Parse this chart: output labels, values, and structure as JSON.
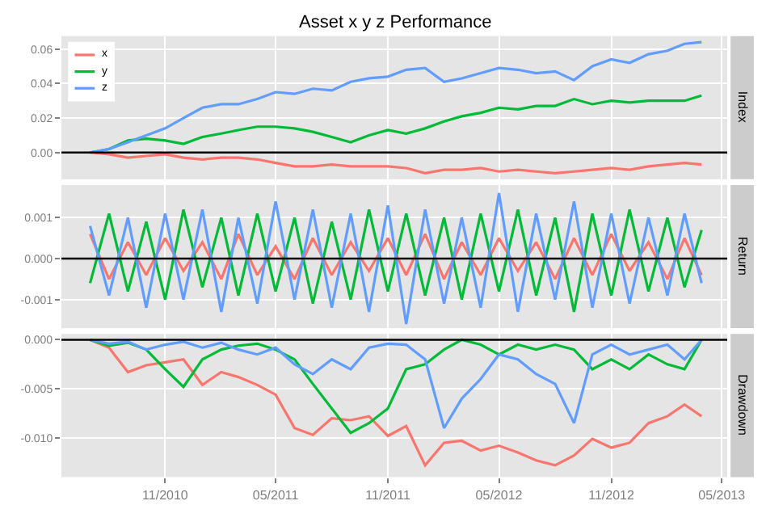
{
  "chart_data": [
    {
      "type": "line",
      "title": "Asset x y z Performance",
      "ylabel": "Index",
      "legend": "top left",
      "grid": true,
      "tick_labels": "y",
      "x": [
        "2010-07-01",
        "2010-08-01",
        "2010-09-01",
        "2010-10-01",
        "2010-11-01",
        "2010-12-01",
        "2011-01-01",
        "2011-02-01",
        "2011-03-01",
        "2011-04-01",
        "2011-05-01",
        "2011-06-01",
        "2011-07-01",
        "2011-08-01",
        "2011-09-01",
        "2011-10-01",
        "2011-11-01",
        "2011-12-01",
        "2012-01-01",
        "2012-02-01",
        "2012-03-01",
        "2012-04-01",
        "2012-05-01",
        "2012-06-01",
        "2012-07-01",
        "2012-08-01",
        "2012-09-01",
        "2012-10-01",
        "2012-11-01",
        "2012-12-01",
        "2013-01-01",
        "2013-02-01",
        "2013-03-01",
        "2013-03-29"
      ],
      "xlim": [
        "2010-05-15",
        "2013-05-10"
      ],
      "ylim": [
        -0.0155,
        0.0675
      ],
      "yticks": [
        {
          "value": 0,
          "label": "0.00"
        },
        {
          "value": 0.02,
          "label": "0.02"
        },
        {
          "value": 0.04,
          "label": "0.04"
        },
        {
          "value": 0.06,
          "label": "0.06"
        }
      ],
      "ref_lines": [
        {
          "axis": "y",
          "value": 0,
          "color": "#000000"
        }
      ],
      "series": [
        {
          "name": "x",
          "color": "#f8766d",
          "values": [
            0,
            -0.001,
            -0.003,
            -0.002,
            -0.001,
            -0.003,
            -0.004,
            -0.003,
            -0.003,
            -0.004,
            -0.006,
            -0.008,
            -0.008,
            -0.007,
            -0.008,
            -0.008,
            -0.008,
            -0.009,
            -0.012,
            -0.01,
            -0.01,
            -0.009,
            -0.011,
            -0.01,
            -0.011,
            -0.012,
            -0.011,
            -0.01,
            -0.009,
            -0.01,
            -0.008,
            -0.007,
            -0.006,
            -0.007
          ]
        },
        {
          "name": "y",
          "color": "#00ba38",
          "values": [
            0,
            0.002,
            0.007,
            0.008,
            0.007,
            0.005,
            0.009,
            0.011,
            0.013,
            0.015,
            0.015,
            0.014,
            0.012,
            0.009,
            0.006,
            0.01,
            0.013,
            0.011,
            0.014,
            0.018,
            0.021,
            0.023,
            0.026,
            0.025,
            0.027,
            0.027,
            0.031,
            0.028,
            0.03,
            0.029,
            0.03,
            0.03,
            0.03,
            0.033
          ]
        },
        {
          "name": "z",
          "color": "#619cff",
          "values": [
            0,
            0.002,
            0.006,
            0.01,
            0.014,
            0.02,
            0.026,
            0.028,
            0.028,
            0.031,
            0.035,
            0.034,
            0.037,
            0.036,
            0.041,
            0.043,
            0.044,
            0.048,
            0.049,
            0.041,
            0.043,
            0.046,
            0.049,
            0.048,
            0.046,
            0.047,
            0.042,
            0.05,
            0.054,
            0.052,
            0.057,
            0.059,
            0.063,
            0.064
          ]
        }
      ]
    },
    {
      "type": "line",
      "ylabel": "Return",
      "grid": true,
      "tick_labels": "y",
      "x": [
        "2010-07-01",
        "2010-08-01",
        "2010-09-01",
        "2010-10-01",
        "2010-11-01",
        "2010-12-01",
        "2011-01-01",
        "2011-02-01",
        "2011-03-01",
        "2011-04-01",
        "2011-05-01",
        "2011-06-01",
        "2011-07-01",
        "2011-08-01",
        "2011-09-01",
        "2011-10-01",
        "2011-11-01",
        "2011-12-01",
        "2012-01-01",
        "2012-02-01",
        "2012-03-01",
        "2012-04-01",
        "2012-05-01",
        "2012-06-01",
        "2012-07-01",
        "2012-08-01",
        "2012-09-01",
        "2012-10-01",
        "2012-11-01",
        "2012-12-01",
        "2013-01-01",
        "2013-02-01",
        "2013-03-01",
        "2013-03-29"
      ],
      "xlim": [
        "2010-05-15",
        "2013-05-10"
      ],
      "ylim": [
        -0.0017,
        0.0018
      ],
      "yticks": [
        {
          "value": -0.001,
          "label": "-0.001"
        },
        {
          "value": 0,
          "label": "0.000"
        },
        {
          "value": 0.001,
          "label": "0.001"
        }
      ],
      "ref_lines": [
        {
          "axis": "y",
          "value": 0,
          "color": "#000000"
        }
      ],
      "series": [
        {
          "color": "#f8766d",
          "values": [
            0.0006,
            -0.0005,
            0.0004,
            -0.0004,
            0.0005,
            -0.0003,
            0.0004,
            -0.0005,
            0.0006,
            -0.0004,
            0.0003,
            -0.0005,
            0.0005,
            -0.0004,
            0.0004,
            -0.0003,
            0.0005,
            -0.0004,
            0.0006,
            -0.0005,
            0.0004,
            -0.0004,
            0.0005,
            -0.0003,
            0.0004,
            -0.0005,
            0.0005,
            -0.0004,
            0.0006,
            -0.0003,
            0.0004,
            -0.0005,
            0.0005,
            -0.0004
          ]
        },
        {
          "color": "#00ba38",
          "values": [
            -0.0006,
            0.0011,
            -0.0008,
            0.0009,
            -0.001,
            0.0012,
            -0.0007,
            0.001,
            -0.0009,
            0.0011,
            -0.0008,
            0.001,
            -0.0011,
            0.0009,
            -0.001,
            0.0012,
            -0.0008,
            0.0011,
            -0.0009,
            0.001,
            -0.001,
            0.0011,
            -0.0008,
            0.0012,
            -0.0009,
            0.001,
            -0.0013,
            0.0011,
            -0.0009,
            0.0012,
            -0.0008,
            0.001,
            -0.0007,
            0.0007
          ]
        },
        {
          "color": "#619cff",
          "values": [
            0.0008,
            -0.0009,
            0.001,
            -0.0012,
            0.0011,
            -0.001,
            0.0012,
            -0.0013,
            0.001,
            -0.0011,
            0.0014,
            -0.001,
            0.0012,
            -0.0012,
            0.0011,
            -0.0013,
            0.0013,
            -0.0016,
            0.0012,
            -0.0011,
            0.001,
            -0.0012,
            0.0016,
            -0.0013,
            0.0011,
            -0.001,
            0.0014,
            -0.0012,
            0.0011,
            -0.0011,
            0.001,
            -0.0009,
            0.0011,
            -0.0006
          ]
        }
      ]
    },
    {
      "type": "line",
      "ylabel": "Drawdown",
      "grid": true,
      "x": [
        "2010-07-01",
        "2010-08-01",
        "2010-09-01",
        "2010-10-01",
        "2010-11-01",
        "2010-12-01",
        "2011-01-01",
        "2011-02-01",
        "2011-03-01",
        "2011-04-01",
        "2011-05-01",
        "2011-06-01",
        "2011-07-01",
        "2011-08-01",
        "2011-09-01",
        "2011-10-01",
        "2011-11-01",
        "2011-12-01",
        "2012-01-01",
        "2012-02-01",
        "2012-03-01",
        "2012-04-01",
        "2012-05-01",
        "2012-06-01",
        "2012-07-01",
        "2012-08-01",
        "2012-09-01",
        "2012-10-01",
        "2012-11-01",
        "2012-12-01",
        "2013-01-01",
        "2013-02-01",
        "2013-03-01",
        "2013-03-29"
      ],
      "xlim": [
        "2010-05-15",
        "2013-05-10"
      ],
      "xticks": [
        {
          "value": "2010-11-01",
          "label": "11/2010"
        },
        {
          "value": "2011-05-01",
          "label": "05/2011"
        },
        {
          "value": "2011-11-01",
          "label": "11/2011"
        },
        {
          "value": "2012-05-01",
          "label": "05/2012"
        },
        {
          "value": "2012-11-01",
          "label": "11/2012"
        },
        {
          "value": "2013-05-01",
          "label": "05/2013"
        }
      ],
      "ylim": [
        -0.014,
        0.0006
      ],
      "yticks": [
        {
          "value": -0.01,
          "label": "-0.010"
        },
        {
          "value": -0.005,
          "label": "-0.005"
        },
        {
          "value": 0,
          "label": "0.000"
        }
      ],
      "ref_lines": [
        {
          "axis": "y",
          "value": 0,
          "color": "#000000"
        }
      ],
      "series": [
        {
          "color": "#f8766d",
          "values": [
            0,
            -0.0008,
            -0.0033,
            -0.0026,
            -0.0023,
            -0.002,
            -0.0046,
            -0.0033,
            -0.0038,
            -0.0046,
            -0.0056,
            -0.009,
            -0.0097,
            -0.008,
            -0.0082,
            -0.0078,
            -0.0098,
            -0.0088,
            -0.0128,
            -0.0105,
            -0.0103,
            -0.0113,
            -0.0108,
            -0.0115,
            -0.0123,
            -0.0128,
            -0.0118,
            -0.0101,
            -0.011,
            -0.0105,
            -0.0085,
            -0.0078,
            -0.0066,
            -0.0078
          ]
        },
        {
          "color": "#00ba38",
          "values": [
            0,
            -0.0006,
            -0.0003,
            -0.001,
            -0.003,
            -0.0048,
            -0.002,
            -0.001,
            -0.0006,
            -0.0004,
            -0.001,
            -0.002,
            -0.0045,
            -0.007,
            -0.0095,
            -0.0085,
            -0.007,
            -0.003,
            -0.0025,
            -0.001,
            0,
            -0.0005,
            -0.0015,
            -0.0005,
            -0.001,
            -0.0005,
            -0.001,
            -0.003,
            -0.002,
            -0.003,
            -0.0015,
            -0.0025,
            -0.003,
            0
          ]
        },
        {
          "color": "#619cff",
          "values": [
            0,
            -0.0004,
            -0.0002,
            -0.001,
            -0.0005,
            -0.0002,
            -0.0008,
            -0.0003,
            -0.001,
            -0.0015,
            -0.0008,
            -0.0025,
            -0.0035,
            -0.002,
            -0.003,
            -0.0008,
            -0.0004,
            -0.0005,
            -0.002,
            -0.009,
            -0.006,
            -0.004,
            -0.0015,
            -0.002,
            -0.0035,
            -0.0045,
            -0.0085,
            -0.0015,
            -0.0005,
            -0.0015,
            -0.001,
            -0.0005,
            -0.002,
            0
          ]
        }
      ]
    }
  ]
}
